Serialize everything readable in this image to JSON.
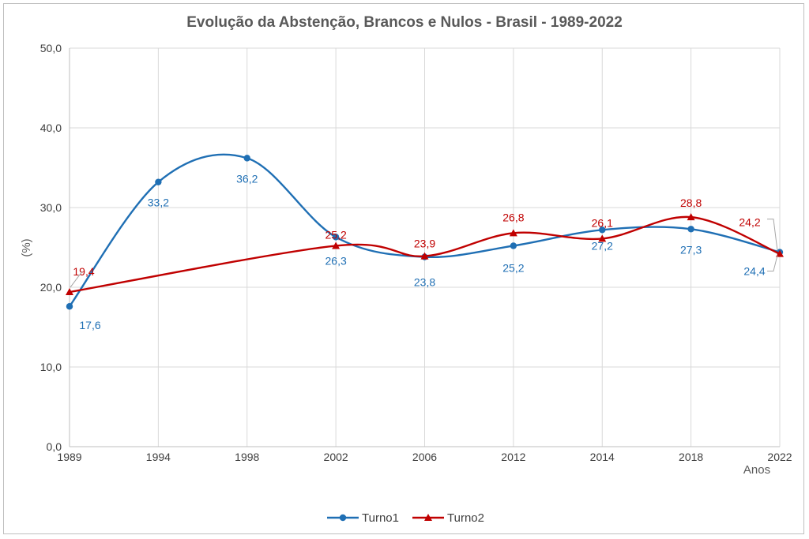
{
  "chart_data": {
    "type": "line",
    "title": "Evolução da Abstenção, Brancos e Nulos - Brasil - 1989-2022",
    "xlabel": "Anos",
    "ylabel": "(%)",
    "ylim": [
      0,
      50
    ],
    "yticks": [
      "0,0",
      "10,0",
      "20,0",
      "30,0",
      "40,0",
      "50,0"
    ],
    "categories": [
      "1989",
      "1994",
      "1998",
      "2002",
      "2006",
      "2012",
      "2014",
      "2018",
      "2022"
    ],
    "grid": true,
    "legend_position": "bottom",
    "series": [
      {
        "name": "Turno1",
        "color": "#1f6fb4",
        "marker": "circle",
        "values": [
          17.6,
          33.2,
          36.2,
          26.3,
          23.8,
          25.2,
          27.2,
          27.3,
          24.4
        ],
        "labels": [
          "17,6",
          "33,2",
          "36,2",
          "26,3",
          "23,8",
          "25,2",
          "27,2",
          "27,3",
          "24,4"
        ]
      },
      {
        "name": "Turno2",
        "color": "#c00000",
        "marker": "triangle",
        "values": [
          19.4,
          null,
          null,
          25.2,
          23.9,
          26.8,
          26.1,
          28.8,
          24.2
        ],
        "labels": [
          "19,4",
          null,
          null,
          "25,2",
          "23,9",
          "26,8",
          "26,1",
          "28,8",
          "24,2"
        ]
      }
    ]
  }
}
